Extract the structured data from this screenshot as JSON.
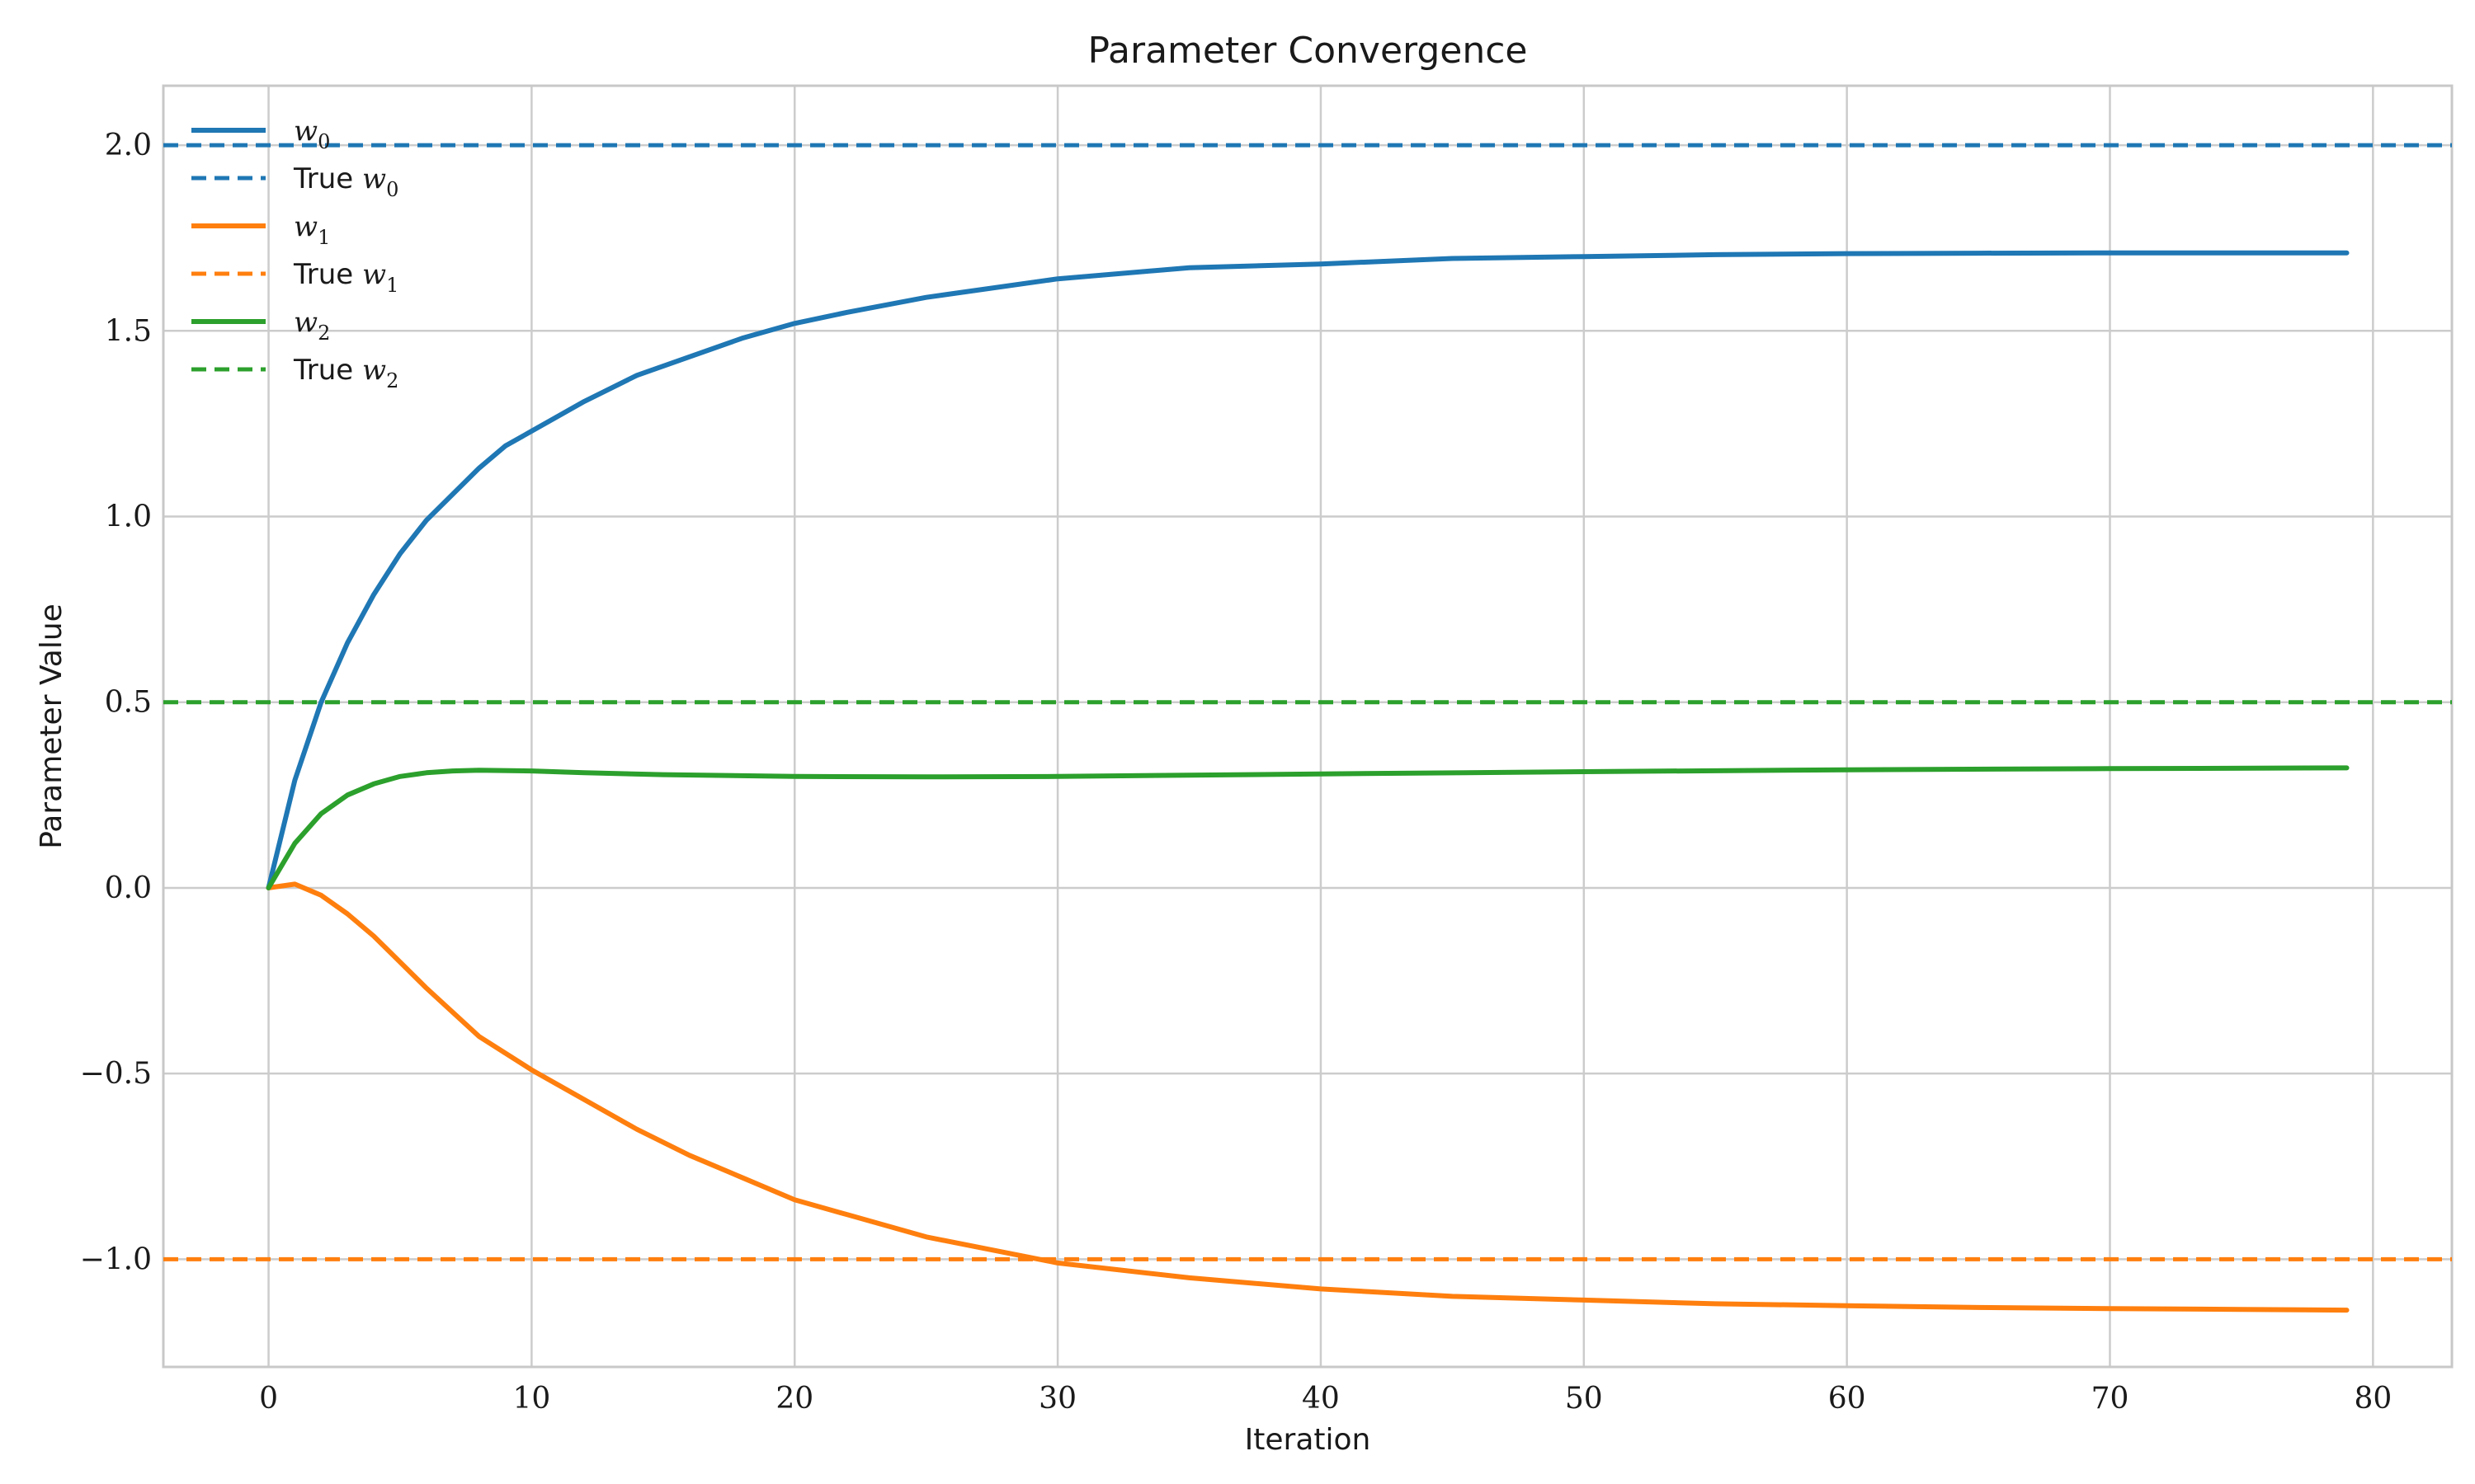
{
  "chart_data": {
    "type": "line",
    "title": "Parameter Convergence",
    "xlabel": "Iteration",
    "ylabel": "Parameter Value",
    "xlim": [
      -4,
      83
    ],
    "ylim": [
      -1.29,
      2.16
    ],
    "xticks": [
      0,
      10,
      20,
      30,
      40,
      50,
      60,
      70,
      80
    ],
    "yticks": [
      -1.0,
      -0.5,
      0.0,
      0.5,
      1.0,
      1.5,
      2.0
    ],
    "ytick_labels": [
      "−1.0",
      "−0.5",
      "0.0",
      "0.5",
      "1.0",
      "1.5",
      "2.0"
    ],
    "grid": true,
    "legend_position": "top-left",
    "series": [
      {
        "name": "w0",
        "legend_prefix": "",
        "legend_symbol": "w",
        "legend_subscript": "0",
        "style": "solid",
        "color": "#1f77b4",
        "x": [
          0,
          1,
          2,
          3,
          4,
          5,
          6,
          7,
          8,
          9,
          10,
          12,
          14,
          16,
          18,
          20,
          22,
          25,
          30,
          35,
          40,
          45,
          50,
          55,
          60,
          65,
          70,
          75,
          79
        ],
        "y": [
          0.0,
          0.29,
          0.5,
          0.66,
          0.79,
          0.9,
          0.99,
          1.06,
          1.13,
          1.19,
          1.23,
          1.31,
          1.38,
          1.43,
          1.48,
          1.52,
          1.55,
          1.59,
          1.64,
          1.67,
          1.68,
          1.695,
          1.7,
          1.705,
          1.708,
          1.709,
          1.71,
          1.71,
          1.71
        ]
      },
      {
        "name": "True w0",
        "legend_prefix": "True ",
        "legend_symbol": "w",
        "legend_subscript": "0",
        "style": "dashed",
        "color": "#1f77b4",
        "constant": 2.0
      },
      {
        "name": "w1",
        "legend_prefix": "",
        "legend_symbol": "w",
        "legend_subscript": "1",
        "style": "solid",
        "color": "#ff7f0e",
        "x": [
          0,
          1,
          2,
          3,
          4,
          5,
          6,
          8,
          10,
          12,
          14,
          16,
          18,
          20,
          22,
          25,
          30,
          35,
          40,
          45,
          50,
          55,
          60,
          65,
          70,
          75,
          79
        ],
        "y": [
          0.0,
          0.01,
          -0.02,
          -0.07,
          -0.13,
          -0.2,
          -0.27,
          -0.4,
          -0.49,
          -0.57,
          -0.65,
          -0.72,
          -0.78,
          -0.84,
          -0.88,
          -0.94,
          -1.01,
          -1.05,
          -1.08,
          -1.1,
          -1.11,
          -1.12,
          -1.125,
          -1.13,
          -1.133,
          -1.135,
          -1.137
        ]
      },
      {
        "name": "True w1",
        "legend_prefix": "True ",
        "legend_symbol": "w",
        "legend_subscript": "1",
        "style": "dashed",
        "color": "#ff7f0e",
        "constant": -1.0
      },
      {
        "name": "w2",
        "legend_prefix": "",
        "legend_symbol": "w",
        "legend_subscript": "2",
        "style": "solid",
        "color": "#2ca02c",
        "x": [
          0,
          1,
          2,
          3,
          4,
          5,
          6,
          7,
          8,
          10,
          12,
          15,
          20,
          25,
          30,
          40,
          50,
          60,
          70,
          79
        ],
        "y": [
          0.0,
          0.12,
          0.2,
          0.25,
          0.28,
          0.3,
          0.31,
          0.315,
          0.317,
          0.315,
          0.31,
          0.305,
          0.3,
          0.299,
          0.3,
          0.307,
          0.313,
          0.318,
          0.321,
          0.323
        ]
      },
      {
        "name": "True w2",
        "legend_prefix": "True ",
        "legend_symbol": "w",
        "legend_subscript": "2",
        "style": "dashed",
        "color": "#2ca02c",
        "constant": 0.5
      }
    ]
  }
}
